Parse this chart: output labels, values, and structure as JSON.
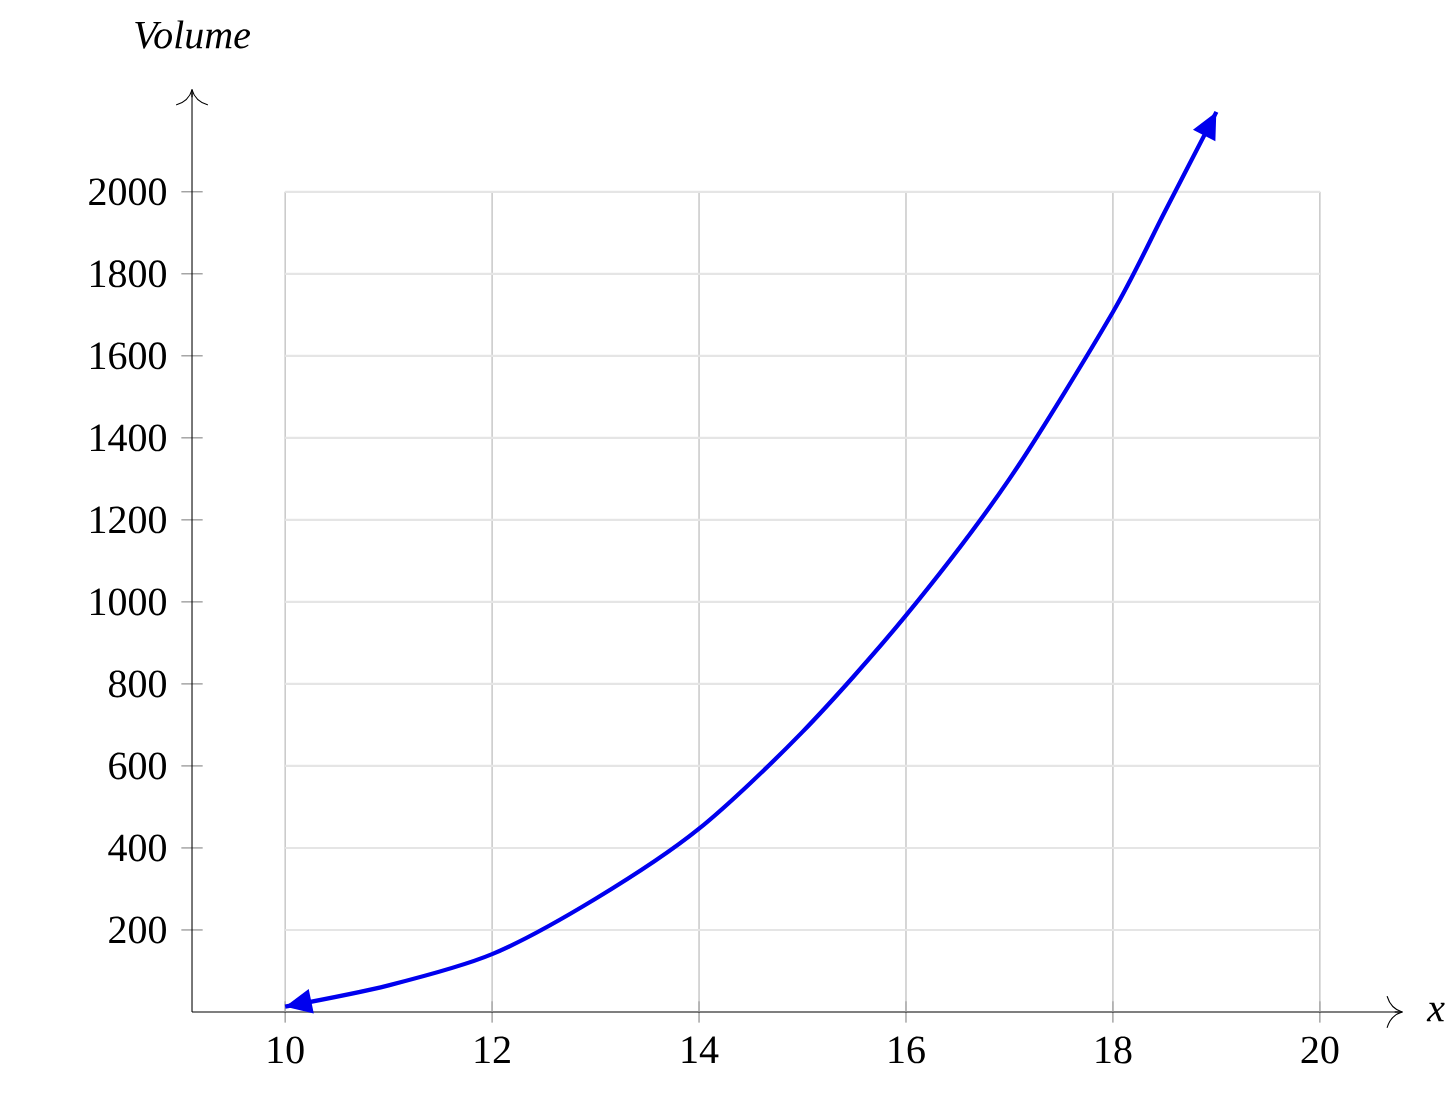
{
  "chart_data": {
    "type": "line",
    "xlabel": "x",
    "ylabel": "Volume",
    "x": [
      10,
      11,
      12,
      13,
      14,
      15,
      16,
      17,
      18,
      18.5,
      19
    ],
    "series": [
      {
        "color": "#0000ee",
        "values": [
          13,
          65,
          141,
          276,
          447,
          683,
          967,
          1300,
          1707,
          1951,
          2195
        ]
      }
    ],
    "xlim": [
      9.1,
      20.8
    ],
    "ylim": [
      0,
      2250
    ],
    "xticks": [
      10,
      12,
      14,
      16,
      18,
      20
    ],
    "yticks": [
      200,
      400,
      600,
      800,
      1000,
      1200,
      1400,
      1600,
      1800,
      2000
    ],
    "grid": true
  }
}
